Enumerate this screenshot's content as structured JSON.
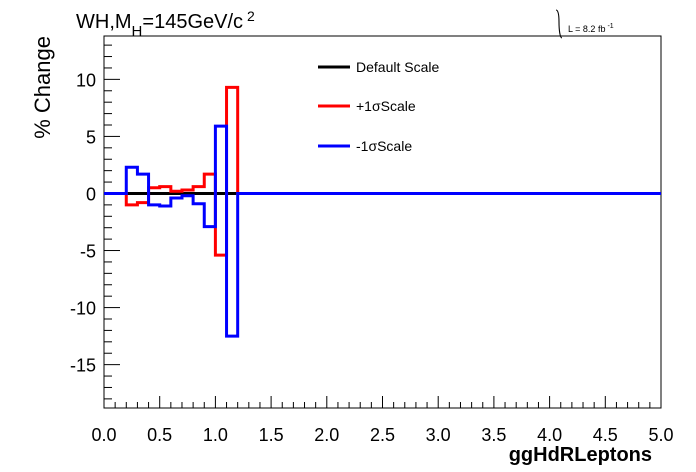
{
  "chart_data": {
    "type": "line",
    "title_main": "WH,M",
    "title_sub": "H",
    "title_rest": "=145GeV/c",
    "title_sup": "2",
    "lumi_label": "L = 8.2 fb",
    "lumi_sup": "-1",
    "xlabel": "ggHdRLeptons",
    "ylabel": "% Change",
    "xlim": [
      0,
      5
    ],
    "ylim": [
      -18.8,
      13.8
    ],
    "x_ticks": [
      "0.0",
      "0.5",
      "1.0",
      "1.5",
      "2.0",
      "2.5",
      "3.0",
      "3.5",
      "4.0",
      "4.5",
      "5.0"
    ],
    "y_ticks": [
      "-15",
      "-10",
      "-5",
      "0",
      "5",
      "10"
    ],
    "bin_edges": [
      0,
      0.1,
      0.2,
      0.3,
      0.4,
      0.5,
      0.6,
      0.7,
      0.8,
      0.9,
      1.0,
      1.1,
      1.2,
      5.0
    ],
    "legend_position": "top-center",
    "series": [
      {
        "name": "Default Scale",
        "color": "#000000",
        "values": [
          0,
          0,
          0,
          0,
          0,
          0,
          0,
          0,
          0,
          0,
          0,
          0,
          0
        ]
      },
      {
        "name": "+1σScale",
        "color": "#ff0000",
        "values": [
          0,
          0,
          -1.0,
          -0.8,
          0.5,
          0.6,
          0.2,
          0.3,
          0.6,
          1.7,
          -5.4,
          9.3,
          0
        ]
      },
      {
        "name": "-1σScale",
        "color": "#0000ff",
        "values": [
          0,
          0,
          2.3,
          1.7,
          -1.0,
          -1.1,
          -0.4,
          -0.2,
          -0.9,
          -2.9,
          5.9,
          -12.5,
          0
        ]
      }
    ]
  }
}
